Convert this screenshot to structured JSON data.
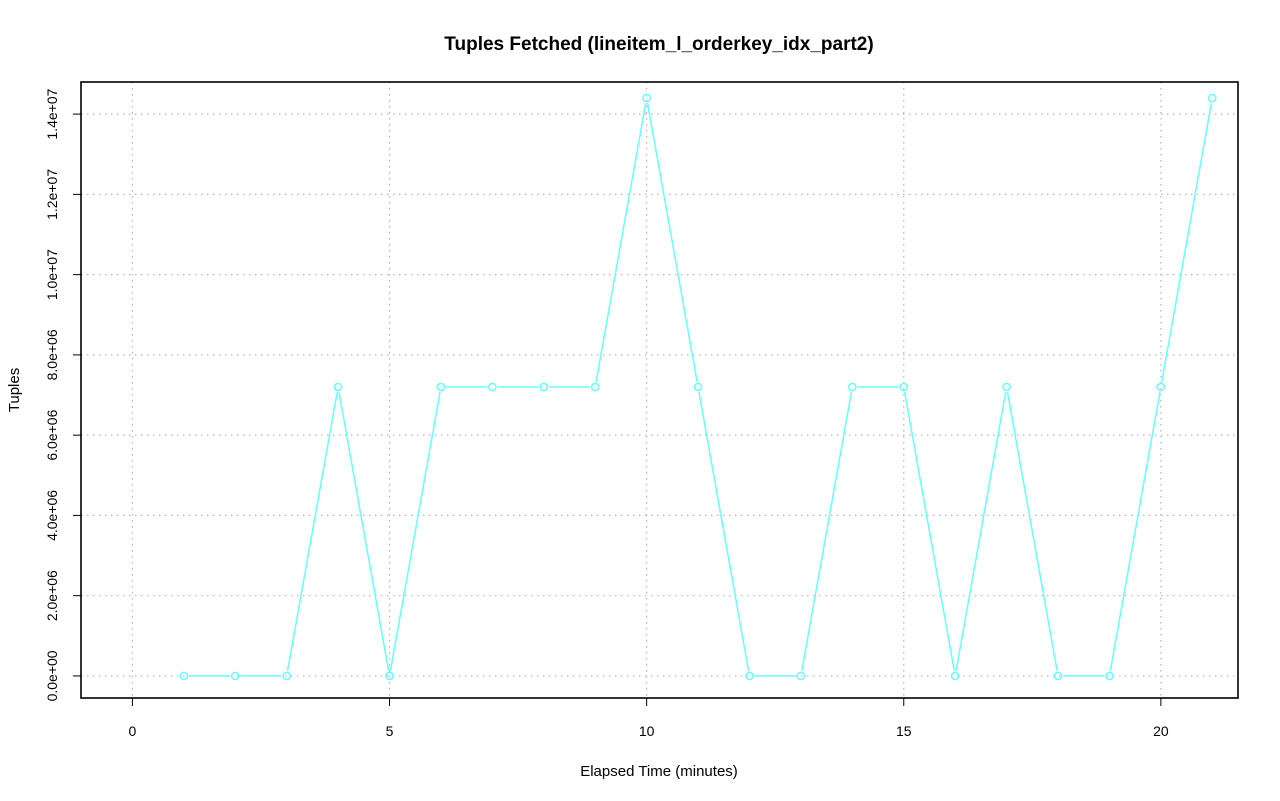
{
  "chart_data": {
    "type": "line",
    "title": "Tuples Fetched (lineitem_l_orderkey_idx_part2)",
    "xlabel": "Elapsed Time (minutes)",
    "ylabel": "Tuples",
    "xlim": [
      -1,
      21.5
    ],
    "ylim": [
      -550000,
      14800000
    ],
    "x_ticks": [
      0,
      5,
      10,
      15,
      20
    ],
    "x_tick_labels": [
      "0",
      "5",
      "10",
      "15",
      "20"
    ],
    "y_ticks": [
      0,
      2000000,
      4000000,
      6000000,
      8000000,
      10000000,
      12000000,
      14000000
    ],
    "y_tick_labels": [
      "0.0e+00",
      "2.0e+06",
      "4.0e+06",
      "6.0e+06",
      "8.0e+06",
      "1.0e+07",
      "1.2e+07",
      "1.4e+07"
    ],
    "grid": true,
    "color": "#66ffff",
    "x": [
      1,
      2,
      3,
      4,
      5,
      6,
      7,
      8,
      9,
      10,
      11,
      12,
      13,
      14,
      15,
      16,
      17,
      18,
      19,
      20,
      21
    ],
    "y": [
      0,
      0,
      0,
      7200000,
      0,
      7200000,
      7200000,
      7200000,
      7200000,
      14400000,
      7200000,
      0,
      0,
      7200000,
      7200000,
      0,
      7200000,
      0,
      0,
      7200000,
      14400000
    ]
  }
}
